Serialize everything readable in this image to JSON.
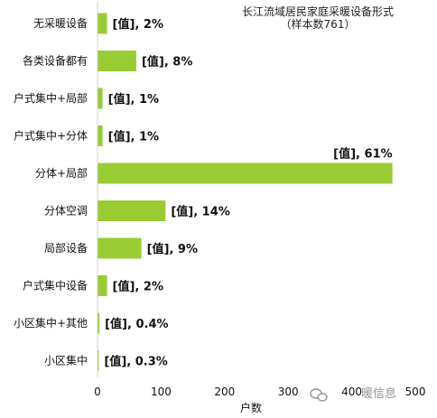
{
  "chart_data": {
    "type": "bar",
    "orientation": "horizontal",
    "title": "长江流域居民家庭采暖设备形式",
    "subtitle": "（样本数761）",
    "categories": [
      "无采暖设备",
      "各类设备都有",
      "户式集中+局部",
      "户式集中+分体",
      "分体+局部",
      "分体空调",
      "局部设备",
      "户式集中设备",
      "小区集中+其他",
      "小区集中"
    ],
    "values": [
      15,
      61,
      8,
      8,
      464,
      107,
      69,
      15,
      3,
      2
    ],
    "data_labels": [
      "[值], 2%",
      "[值], 8%",
      "[值], 1%",
      "[值], 1%",
      "[值], 61%",
      "[值], 14%",
      "[值], 9%",
      "[值], 2%",
      "[值], 0.4%",
      "[值], 0.3%"
    ],
    "xlabel": "户数",
    "ylabel": "",
    "xlim": [
      0,
      500
    ],
    "xticks": [
      0,
      100,
      200,
      300,
      400,
      500
    ],
    "xtick_labels": [
      "0",
      "100",
      "200",
      "300",
      "400",
      "500"
    ],
    "bar_color": "#99cc33",
    "grid": false,
    "legend": "none"
  },
  "watermark": {
    "text": "暖信息",
    "icon": "wechat-icon",
    "color": "#8a8a8a"
  }
}
